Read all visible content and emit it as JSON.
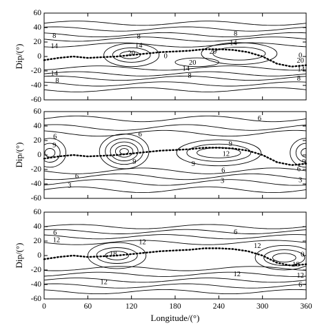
{
  "chart_data": [
    {
      "type": "contour",
      "panel": 1,
      "ylabel": "Dip/(°)",
      "xlabel": "",
      "xlim": [
        0,
        360
      ],
      "ylim": [
        -60,
        60
      ],
      "yticks": [
        60,
        40,
        20,
        0,
        -20,
        -40,
        -60
      ],
      "contour_labels": [
        {
          "text": "8",
          "x": 14,
          "y": 28
        },
        {
          "text": "14",
          "x": 14,
          "y": 14
        },
        {
          "text": "8",
          "x": 130,
          "y": 27
        },
        {
          "text": "14",
          "x": 130,
          "y": 15
        },
        {
          "text": "20",
          "x": 120,
          "y": 4
        },
        {
          "text": "8",
          "x": 263,
          "y": 31
        },
        {
          "text": "14",
          "x": 260,
          "y": 18
        },
        {
          "text": "20",
          "x": 232,
          "y": 6
        },
        {
          "text": "20",
          "x": 204,
          "y": -9
        },
        {
          "text": "14",
          "x": 14,
          "y": -24
        },
        {
          "text": "8",
          "x": 18,
          "y": -34
        },
        {
          "text": "14",
          "x": 195,
          "y": -17
        },
        {
          "text": "8",
          "x": 200,
          "y": -27
        },
        {
          "text": "0",
          "x": 167,
          "y": 0
        },
        {
          "text": "0",
          "x": 352,
          "y": 1
        },
        {
          "text": "20",
          "x": 352,
          "y": -6
        },
        {
          "text": "14",
          "x": 353,
          "y": -18
        },
        {
          "text": "8",
          "x": 350,
          "y": -31
        }
      ],
      "dip_equator": [
        [
          0,
          -5
        ],
        [
          20,
          -2
        ],
        [
          40,
          0
        ],
        [
          60,
          -2
        ],
        [
          80,
          -1
        ],
        [
          100,
          0
        ],
        [
          120,
          2
        ],
        [
          140,
          4
        ],
        [
          160,
          6
        ],
        [
          180,
          7
        ],
        [
          200,
          8
        ],
        [
          220,
          10
        ],
        [
          240,
          10
        ],
        [
          260,
          9
        ],
        [
          280,
          6
        ],
        [
          300,
          0
        ],
        [
          320,
          -10
        ],
        [
          340,
          -14
        ],
        [
          360,
          -12
        ]
      ]
    },
    {
      "type": "contour",
      "panel": 2,
      "ylabel": "Dip/(°)",
      "xlabel": "",
      "xlim": [
        0,
        360
      ],
      "ylim": [
        -60,
        60
      ],
      "yticks": [
        60,
        40,
        20,
        0,
        -20,
        -40,
        -60
      ],
      "contour_labels": [
        {
          "text": "6",
          "x": 15,
          "y": 25
        },
        {
          "text": "9",
          "x": 14,
          "y": 13
        },
        {
          "text": "6",
          "x": 132,
          "y": 28
        },
        {
          "text": "9",
          "x": 124,
          "y": -10
        },
        {
          "text": "6",
          "x": 296,
          "y": 50
        },
        {
          "text": "9",
          "x": 256,
          "y": 15
        },
        {
          "text": "12",
          "x": 250,
          "y": 1
        },
        {
          "text": "9",
          "x": 205,
          "y": -13
        },
        {
          "text": "6",
          "x": 246,
          "y": -22
        },
        {
          "text": "3",
          "x": 245,
          "y": -36
        },
        {
          "text": "6",
          "x": 45,
          "y": -30
        },
        {
          "text": "3",
          "x": 35,
          "y": -43
        },
        {
          "text": "9",
          "x": 357,
          "y": -10
        },
        {
          "text": "6",
          "x": 350,
          "y": -20
        },
        {
          "text": "3",
          "x": 352,
          "y": -35
        }
      ],
      "dip_equator": [
        [
          0,
          -5
        ],
        [
          20,
          -2
        ],
        [
          40,
          0
        ],
        [
          60,
          -2
        ],
        [
          80,
          -1
        ],
        [
          100,
          0
        ],
        [
          120,
          2
        ],
        [
          140,
          4
        ],
        [
          160,
          6
        ],
        [
          180,
          7
        ],
        [
          200,
          8
        ],
        [
          220,
          10
        ],
        [
          240,
          10
        ],
        [
          260,
          9
        ],
        [
          280,
          6
        ],
        [
          300,
          0
        ],
        [
          320,
          -10
        ],
        [
          340,
          -14
        ],
        [
          360,
          -12
        ]
      ]
    },
    {
      "type": "contour",
      "panel": 3,
      "ylabel": "Dip/(°)",
      "xlabel": "Longitude/(°)",
      "xlim": [
        0,
        360
      ],
      "ylim": [
        -60,
        60
      ],
      "xticks": [
        0,
        60,
        120,
        180,
        240,
        300,
        360
      ],
      "yticks": [
        60,
        40,
        20,
        0,
        -20,
        -40,
        -60
      ],
      "contour_labels": [
        {
          "text": "6",
          "x": 15,
          "y": 31
        },
        {
          "text": "12",
          "x": 17,
          "y": 21
        },
        {
          "text": "12",
          "x": 135,
          "y": 18
        },
        {
          "text": "18",
          "x": 95,
          "y": 2
        },
        {
          "text": "6",
          "x": 263,
          "y": 32
        },
        {
          "text": "12",
          "x": 293,
          "y": 13
        },
        {
          "text": "12",
          "x": 82,
          "y": -37
        },
        {
          "text": "12",
          "x": 265,
          "y": -26
        },
        {
          "text": "18",
          "x": 346,
          "y": -13
        },
        {
          "text": "12",
          "x": 352,
          "y": -28
        },
        {
          "text": "6",
          "x": 352,
          "y": -41
        },
        {
          "text": "0",
          "x": 355,
          "y": 1
        }
      ],
      "dip_equator": [
        [
          0,
          -5
        ],
        [
          20,
          -2
        ],
        [
          40,
          0
        ],
        [
          60,
          -2
        ],
        [
          80,
          -1
        ],
        [
          100,
          0
        ],
        [
          120,
          2
        ],
        [
          140,
          4
        ],
        [
          160,
          6
        ],
        [
          180,
          7
        ],
        [
          200,
          8
        ],
        [
          220,
          10
        ],
        [
          240,
          10
        ],
        [
          260,
          9
        ],
        [
          280,
          6
        ],
        [
          300,
          0
        ],
        [
          320,
          -10
        ],
        [
          340,
          -14
        ],
        [
          360,
          -12
        ]
      ]
    }
  ]
}
